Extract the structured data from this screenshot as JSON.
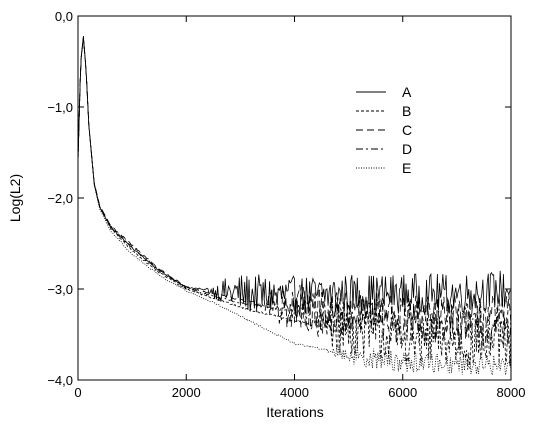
{
  "chart_data": {
    "type": "line",
    "title": "",
    "xlabel": "Iterations",
    "ylabel": "Log(L2)",
    "xlim": [
      0,
      8000
    ],
    "ylim": [
      -4.0,
      0.0
    ],
    "xticks": [
      0,
      2000,
      4000,
      6000,
      8000
    ],
    "xtick_labels": [
      "0",
      "2000",
      "4000",
      "6000",
      "8000"
    ],
    "yticks": [
      0.0,
      -1.0,
      -2.0,
      -3.0,
      -4.0
    ],
    "ytick_labels": [
      "0,0",
      "−1,0",
      "−2,0",
      "−3,0",
      "−4,0"
    ],
    "grid": false,
    "legend_position": "upper-right",
    "series": [
      {
        "name": "A",
        "dash": "solid",
        "x": [
          0,
          50,
          100,
          150,
          200,
          300,
          400,
          600,
          1000,
          1500,
          2000,
          2500,
          3000,
          4000,
          5000,
          6000,
          7000,
          8000
        ],
        "y": [
          -1.6,
          -0.5,
          -0.22,
          -0.6,
          -1.2,
          -1.85,
          -2.1,
          -2.32,
          -2.55,
          -2.8,
          -2.98,
          -3.02,
          -3.05,
          -3.08,
          -3.05,
          -3.05,
          -3.05,
          -3.0
        ],
        "noise_from": 2300,
        "noise_amp": 0.22
      },
      {
        "name": "B",
        "dash": "short-dash",
        "x": [
          0,
          50,
          100,
          150,
          200,
          300,
          400,
          600,
          1000,
          1500,
          2000,
          2500,
          3000,
          4000,
          5000,
          6000,
          7000,
          8000
        ],
        "y": [
          -1.6,
          -0.5,
          -0.25,
          -0.6,
          -1.2,
          -1.85,
          -2.1,
          -2.33,
          -2.58,
          -2.82,
          -3.0,
          -3.1,
          -3.2,
          -3.35,
          -3.45,
          -3.55,
          -3.6,
          -3.6
        ],
        "noise_from": 4200,
        "noise_amp": 0.28
      },
      {
        "name": "C",
        "dash": "long-dash",
        "x": [
          0,
          50,
          100,
          150,
          200,
          300,
          400,
          600,
          1000,
          1500,
          2000,
          2500,
          3000,
          4000,
          5000,
          6000,
          7000,
          8000
        ],
        "y": [
          -1.6,
          -0.5,
          -0.24,
          -0.6,
          -1.2,
          -1.83,
          -2.08,
          -2.3,
          -2.52,
          -2.78,
          -2.98,
          -3.05,
          -3.12,
          -3.2,
          -3.25,
          -3.3,
          -3.32,
          -3.3
        ],
        "noise_from": 3200,
        "noise_amp": 0.25
      },
      {
        "name": "D",
        "dash": "dash-dot",
        "x": [
          0,
          50,
          100,
          150,
          200,
          300,
          400,
          600,
          1000,
          1500,
          2000,
          2500,
          3000,
          4000,
          5000,
          6000,
          7000,
          8000
        ],
        "y": [
          -1.6,
          -0.5,
          -0.23,
          -0.6,
          -1.2,
          -1.84,
          -2.09,
          -2.31,
          -2.54,
          -2.79,
          -2.99,
          -3.08,
          -3.15,
          -3.25,
          -3.3,
          -3.35,
          -3.4,
          -3.4
        ],
        "noise_from": 3600,
        "noise_amp": 0.26
      },
      {
        "name": "E",
        "dash": "dotted",
        "x": [
          0,
          50,
          100,
          150,
          200,
          300,
          400,
          600,
          1000,
          1500,
          2000,
          2500,
          3000,
          4000,
          5000,
          6000,
          7000,
          8000
        ],
        "y": [
          -1.6,
          -0.5,
          -0.26,
          -0.6,
          -1.2,
          -1.86,
          -2.12,
          -2.36,
          -2.62,
          -2.85,
          -3.02,
          -3.15,
          -3.3,
          -3.6,
          -3.72,
          -3.8,
          -3.82,
          -3.85
        ],
        "noise_from": 4500,
        "noise_amp": 0.12
      }
    ]
  }
}
